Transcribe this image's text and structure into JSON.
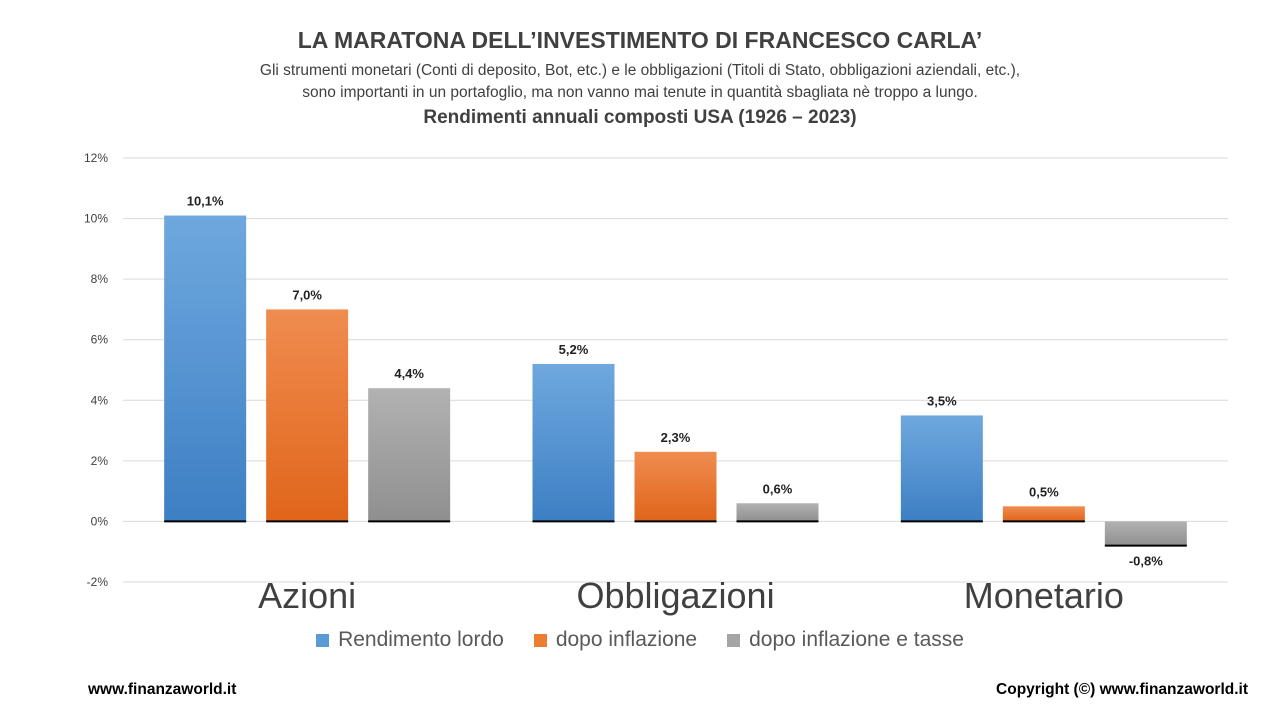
{
  "header": {
    "title": "LA MARATONA DELL’INVESTIMENTO  DI FRANCESCO CARLA’",
    "subtitle_line1": "Gli strumenti monetari (Conti di deposito, Bot, etc.) e le obbligazioni (Titoli di Stato, obbligazioni aziendali, etc.),",
    "subtitle_line2": "sono importanti in un portafoglio, ma non vanno mai tenute in quantità sbagliata nè troppo a lungo.",
    "chart_heading": "Rendimenti annuali composti USA (1926 – 2023)"
  },
  "footer": {
    "left": "www.finanzaworld.it",
    "right": "Copyright (©) www.finanzaworld.it"
  },
  "chart_data": {
    "type": "bar",
    "title": "Rendimenti annuali composti USA (1926 – 2023)",
    "categories": [
      "Azioni",
      "Obbligazioni",
      "Monetario"
    ],
    "series": [
      {
        "name": "Rendimento lordo",
        "values": [
          10.1,
          5.2,
          3.5
        ],
        "labels": [
          "10,1%",
          "5,2%",
          "3,5%"
        ],
        "color": "#5b9bd5"
      },
      {
        "name": "dopo inflazione",
        "values": [
          7.0,
          2.3,
          0.5
        ],
        "labels": [
          "7,0%",
          "2,3%",
          "0,5%"
        ],
        "color": "#ed7d31"
      },
      {
        "name": "dopo inflazione e tasse",
        "values": [
          4.4,
          0.6,
          -0.8
        ],
        "labels": [
          "4,4%",
          "0,6%",
          "-0,8%"
        ],
        "color": "#a5a5a5"
      }
    ],
    "ylim": [
      -2,
      12
    ],
    "yticks": [
      -2,
      0,
      2,
      4,
      6,
      8,
      10,
      12
    ],
    "ytick_labels": [
      "-2%",
      "0%",
      "2%",
      "4%",
      "6%",
      "8%",
      "10%",
      "12%"
    ],
    "grid": true,
    "legend_position": "bottom"
  }
}
